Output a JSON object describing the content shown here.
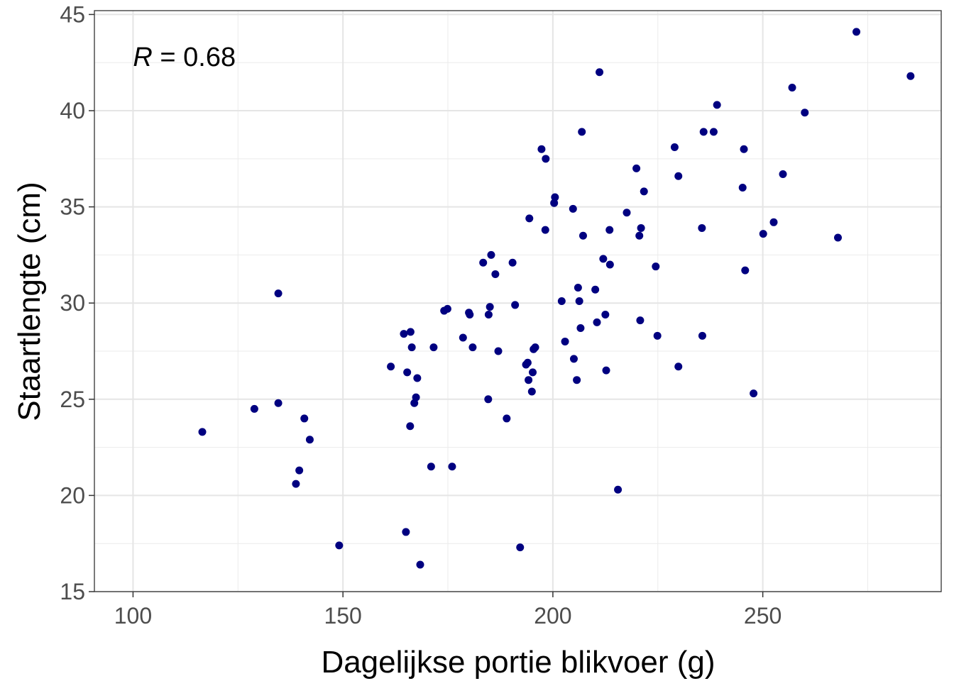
{
  "chart_data": {
    "type": "scatter",
    "xlabel": "Dagelijkse portie blikvoer (g)",
    "ylabel": "Staartlengte (cm)",
    "xlim": [
      90.8,
      292.5
    ],
    "ylim": [
      15,
      45.2
    ],
    "x_ticks": [
      100,
      150,
      200,
      250
    ],
    "y_ticks": [
      15,
      20,
      25,
      30,
      35,
      40,
      45
    ],
    "x_tick_labels": [
      "100",
      "150",
      "200",
      "250"
    ],
    "y_tick_labels": [
      "15",
      "20",
      "25",
      "30",
      "35",
      "40",
      "45"
    ],
    "grid": true,
    "annotation": {
      "label": "R",
      "text": " = 0.68",
      "x": 100,
      "y": 42.8
    },
    "point_color": "#000080",
    "points": [
      [
        116.5,
        23.3
      ],
      [
        128.9,
        24.5
      ],
      [
        134.6,
        30.5
      ],
      [
        134.6,
        24.8
      ],
      [
        138.8,
        20.6
      ],
      [
        139.6,
        21.3
      ],
      [
        140.8,
        24.0
      ],
      [
        142.1,
        22.9
      ],
      [
        149.1,
        17.4
      ],
      [
        161.4,
        26.7
      ],
      [
        164.5,
        28.4
      ],
      [
        165.0,
        18.1
      ],
      [
        165.3,
        26.4
      ],
      [
        166.0,
        23.6
      ],
      [
        166.1,
        28.5
      ],
      [
        166.4,
        27.7
      ],
      [
        167.0,
        24.8
      ],
      [
        167.4,
        25.1
      ],
      [
        167.7,
        26.1
      ],
      [
        168.4,
        16.4
      ],
      [
        171.0,
        21.5
      ],
      [
        171.6,
        27.7
      ],
      [
        174.1,
        29.6
      ],
      [
        174.9,
        29.7
      ],
      [
        176.0,
        21.5
      ],
      [
        178.6,
        28.2
      ],
      [
        180.0,
        29.5
      ],
      [
        180.2,
        29.4
      ],
      [
        180.9,
        27.7
      ],
      [
        183.4,
        32.1
      ],
      [
        184.6,
        25.0
      ],
      [
        184.7,
        29.4
      ],
      [
        185.0,
        29.8
      ],
      [
        185.3,
        32.5
      ],
      [
        186.3,
        31.5
      ],
      [
        187.0,
        27.5
      ],
      [
        189.0,
        24.0
      ],
      [
        190.4,
        32.1
      ],
      [
        191.0,
        29.9
      ],
      [
        192.2,
        17.3
      ],
      [
        193.6,
        26.8
      ],
      [
        194.0,
        26.9
      ],
      [
        194.2,
        26.0
      ],
      [
        194.4,
        34.4
      ],
      [
        195.0,
        25.4
      ],
      [
        195.2,
        26.4
      ],
      [
        195.4,
        27.6
      ],
      [
        195.8,
        27.7
      ],
      [
        197.3,
        38.0
      ],
      [
        198.2,
        33.8
      ],
      [
        198.3,
        37.5
      ],
      [
        200.3,
        35.2
      ],
      [
        200.5,
        35.5
      ],
      [
        202.1,
        30.1
      ],
      [
        202.9,
        28.0
      ],
      [
        204.8,
        34.9
      ],
      [
        205.0,
        27.1
      ],
      [
        205.7,
        26.0
      ],
      [
        206.0,
        30.8
      ],
      [
        206.3,
        30.1
      ],
      [
        206.6,
        28.7
      ],
      [
        206.9,
        38.9
      ],
      [
        207.2,
        33.5
      ],
      [
        210.1,
        30.7
      ],
      [
        210.5,
        29.0
      ],
      [
        211.1,
        42.0
      ],
      [
        212.0,
        32.3
      ],
      [
        212.5,
        29.4
      ],
      [
        212.7,
        26.5
      ],
      [
        213.5,
        33.8
      ],
      [
        213.6,
        32.0
      ],
      [
        215.5,
        20.3
      ],
      [
        217.6,
        34.7
      ],
      [
        219.9,
        37.0
      ],
      [
        220.6,
        33.5
      ],
      [
        220.8,
        29.1
      ],
      [
        221.0,
        33.9
      ],
      [
        221.7,
        35.8
      ],
      [
        224.5,
        31.9
      ],
      [
        224.9,
        28.3
      ],
      [
        229.0,
        38.1
      ],
      [
        229.9,
        36.6
      ],
      [
        229.9,
        26.7
      ],
      [
        235.5,
        33.9
      ],
      [
        235.6,
        28.3
      ],
      [
        235.9,
        38.9
      ],
      [
        238.3,
        38.9
      ],
      [
        239.1,
        40.3
      ],
      [
        245.2,
        36.0
      ],
      [
        245.5,
        38.0
      ],
      [
        245.8,
        31.7
      ],
      [
        247.8,
        25.3
      ],
      [
        250.1,
        33.6
      ],
      [
        252.6,
        34.2
      ],
      [
        254.8,
        36.7
      ],
      [
        257.0,
        41.2
      ],
      [
        260.0,
        39.9
      ],
      [
        267.9,
        33.4
      ],
      [
        272.3,
        44.1
      ],
      [
        285.2,
        41.8
      ]
    ]
  }
}
